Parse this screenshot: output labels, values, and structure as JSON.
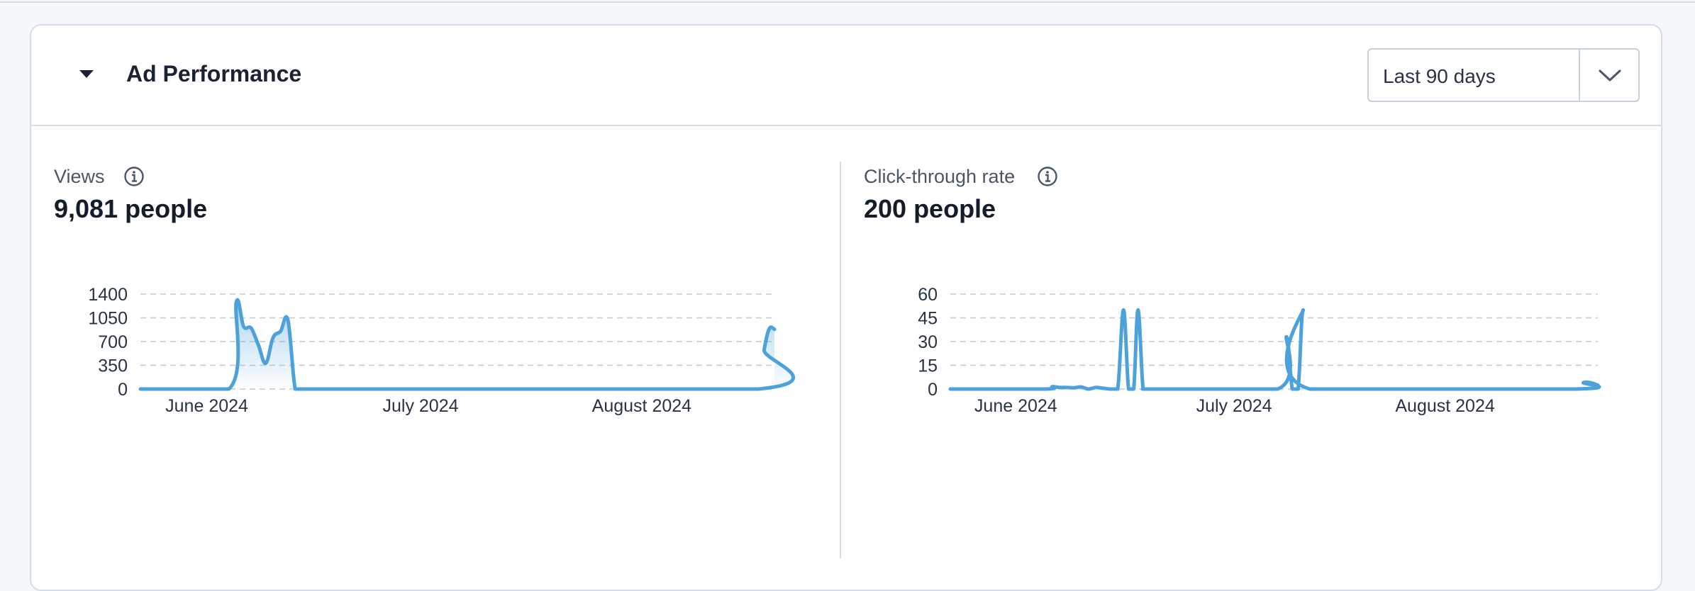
{
  "header": {
    "title": "Ad Performance",
    "range": {
      "selected": "Last 90 days"
    }
  },
  "icons": {
    "caret": "caret-down-icon",
    "info": "info-icon",
    "chevron": "chevron-down-icon"
  },
  "colors": {
    "line": "#4ea2dc",
    "grid": "#c4c9d0",
    "border": "#d7dde6"
  },
  "metrics": [
    {
      "label": "Views",
      "value": "9,081 people"
    },
    {
      "label": "Click-through rate",
      "value": "200 people"
    }
  ],
  "chart_data": [
    {
      "type": "area",
      "ylim": [
        0,
        1400
      ],
      "yticks": [
        0,
        350,
        700,
        1050,
        1400
      ],
      "xtick_labels": [
        "June 2024",
        "July 2024",
        "August 2024"
      ],
      "xtick_positions": [
        6,
        35,
        65
      ],
      "xlim": [
        -3,
        83
      ],
      "grid": true,
      "series": [
        {
          "x": [
            -3,
            9,
            10,
            11,
            12,
            13,
            14,
            15,
            16,
            17,
            18,
            19,
            20,
            21,
            22,
            23,
            24,
            83
          ],
          "values": [
            0,
            0,
            1280,
            920,
            900,
            650,
            380,
            760,
            850,
            1020,
            0,
            0,
            0,
            0,
            0,
            0,
            0,
            0
          ]
        }
      ],
      "tail": {
        "x": [
          80.8,
          81.6,
          82.3,
          83
        ],
        "values": [
          0,
          580,
          890,
          880
        ]
      }
    },
    {
      "type": "line",
      "ylim": [
        0,
        60
      ],
      "yticks": [
        0,
        15,
        30,
        45,
        60
      ],
      "xtick_labels": [
        "June 2024",
        "July 2024",
        "August 2024"
      ],
      "xtick_positions": [
        6,
        36,
        65
      ],
      "xlim": [
        -3,
        86
      ],
      "grid": true,
      "series": [
        {
          "x": [
            -3,
            10,
            11,
            12,
            13,
            14,
            15,
            16,
            17,
            18,
            19,
            20,
            20.8,
            21.5,
            22.2,
            22.8,
            23.5,
            24.2,
            25,
            42,
            43.2,
            44,
            44.8,
            45.5,
            46.4,
            83,
            84,
            85,
            86
          ],
          "values": [
            0,
            0,
            1.5,
            1,
            1,
            0.8,
            1.3,
            0,
            1,
            0.5,
            0,
            0,
            50,
            0,
            0,
            50,
            0,
            0,
            0,
            0,
            33,
            0,
            0,
            50,
            0,
            0,
            4,
            4,
            2.5
          ]
        }
      ]
    }
  ]
}
